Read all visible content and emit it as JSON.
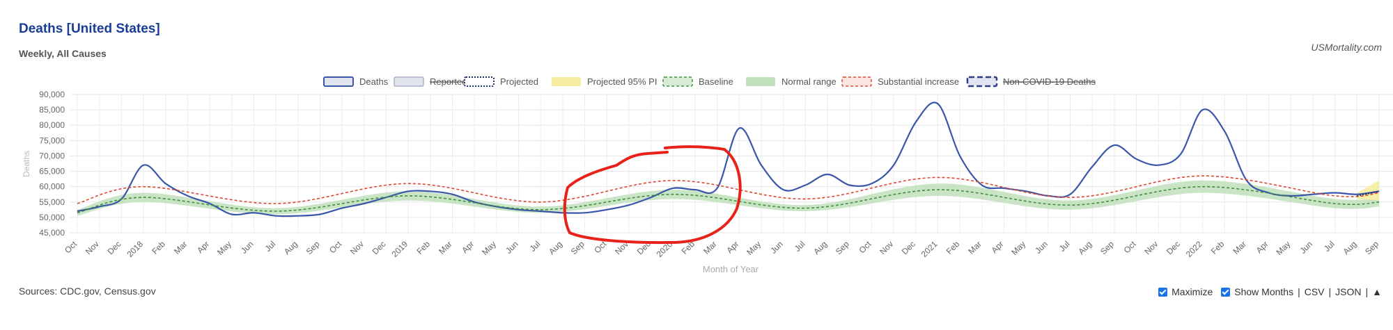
{
  "header": {
    "title": "Deaths [United States]",
    "subtitle": "Weekly, All Causes",
    "brand": "USMortality.com"
  },
  "footer": {
    "sources": "Sources: CDC.gov, Census.gov",
    "maximize_label": "Maximize",
    "show_months_label": "Show Months",
    "csv_label": "CSV",
    "json_label": "JSON",
    "separator": "|",
    "up_arrow": "▲"
  },
  "colors": {
    "deaths": "#3a56a8",
    "reported": "#c9ccd6",
    "projected_pi": "#f5eda0",
    "baseline": "#3f8f3f",
    "normal_range": "#bfe0bb",
    "substantial": "#e0452f",
    "annotation": "#e8221b"
  },
  "chart_data": {
    "type": "line",
    "title": "Deaths [United States]",
    "subtitle": "Weekly, All Causes",
    "xlabel": "Month of Year",
    "ylabel": "Deaths",
    "ylim": [
      45000,
      90000
    ],
    "yticks": [
      "45,000",
      "50,000",
      "55,000",
      "60,000",
      "65,000",
      "70,000",
      "75,000",
      "80,000",
      "85,000",
      "90,000"
    ],
    "grid": true,
    "legend_position": "top",
    "legend": [
      {
        "name": "Deaths",
        "style": "deaths",
        "struck": false
      },
      {
        "name": "Reported",
        "style": "reported",
        "struck": true
      },
      {
        "name": "Projected",
        "style": "projected",
        "struck": false
      },
      {
        "name": "Projected 95% PI",
        "style": "pi",
        "struck": false
      },
      {
        "name": "Baseline",
        "style": "baseline",
        "struck": false
      },
      {
        "name": "Normal range",
        "style": "normal",
        "struck": false
      },
      {
        "name": "Substantial increase",
        "style": "substantial",
        "struck": false
      },
      {
        "name": "Non-COVID-19 Deaths",
        "style": "noncovid",
        "struck": true
      }
    ],
    "x_start": "2017-10",
    "xticks": [
      "Oct",
      "Nov",
      "Dec",
      "2018",
      "Feb",
      "Mar",
      "Apr",
      "May",
      "Jun",
      "Jul",
      "Aug",
      "Sep",
      "Oct",
      "Nov",
      "Dec",
      "2019",
      "Feb",
      "Mar",
      "Apr",
      "May",
      "Jun",
      "Jul",
      "Aug",
      "Sep",
      "Oct",
      "Nov",
      "Dec",
      "2020",
      "Feb",
      "Mar",
      "Apr",
      "May",
      "Jun",
      "Jul",
      "Aug",
      "Sep",
      "Oct",
      "Nov",
      "Dec",
      "2021",
      "Feb",
      "Mar",
      "Apr",
      "May",
      "Jun",
      "Jul",
      "Aug",
      "Sep",
      "Oct",
      "Nov",
      "Dec",
      "2022",
      "Feb",
      "Mar",
      "Apr",
      "May",
      "Jun",
      "Jul",
      "Aug",
      "Sep"
    ],
    "series": [
      {
        "name": "Deaths",
        "x": [
          "2017-10",
          "2017-11",
          "2017-12",
          "2018-01",
          "2018-02",
          "2018-03",
          "2018-04",
          "2018-05",
          "2018-06",
          "2018-07",
          "2018-08",
          "2018-09",
          "2018-10",
          "2018-11",
          "2018-12",
          "2019-01",
          "2019-02",
          "2019-03",
          "2019-04",
          "2019-05",
          "2019-06",
          "2019-07",
          "2019-08",
          "2019-09",
          "2019-10",
          "2019-11",
          "2019-12",
          "2020-01",
          "2020-02",
          "2020-03",
          "2020-04",
          "2020-05",
          "2020-06",
          "2020-07",
          "2020-08",
          "2020-09",
          "2020-10",
          "2020-11",
          "2020-12",
          "2021-01",
          "2021-02",
          "2021-03",
          "2021-04",
          "2021-05",
          "2021-06",
          "2021-07",
          "2021-08",
          "2021-09",
          "2021-10",
          "2021-11",
          "2021-12",
          "2022-01",
          "2022-02",
          "2022-03",
          "2022-04",
          "2022-05",
          "2022-06",
          "2022-07",
          "2022-08",
          "2022-09"
        ],
        "values": [
          52000,
          53500,
          56000,
          67000,
          61000,
          57000,
          54500,
          51000,
          51500,
          50500,
          50500,
          51000,
          53000,
          54500,
          56500,
          58500,
          58500,
          57500,
          55000,
          53500,
          52500,
          52000,
          51500,
          51500,
          52500,
          54000,
          56500,
          59500,
          59000,
          59500,
          79000,
          67000,
          59000,
          60500,
          64000,
          60500,
          61000,
          67000,
          81000,
          87000,
          70000,
          60500,
          59500,
          58500,
          57000,
          57500,
          66500,
          73500,
          69000,
          67000,
          70500,
          85000,
          78000,
          62000,
          58000,
          57000,
          57500,
          58000,
          57500,
          58500
        ]
      },
      {
        "name": "Baseline",
        "x": [
          "2017-10",
          "2018-01",
          "2018-07",
          "2019-01",
          "2019-07",
          "2020-01",
          "2020-07",
          "2021-01",
          "2021-07",
          "2022-01",
          "2022-07",
          "2022-09"
        ],
        "values": [
          51500,
          56500,
          52000,
          57000,
          52500,
          57500,
          53000,
          59000,
          54000,
          60000,
          54500,
          55000
        ]
      },
      {
        "name": "Substantial increase",
        "x": [
          "2017-10",
          "2018-01",
          "2018-07",
          "2019-01",
          "2019-07",
          "2020-01",
          "2020-07",
          "2021-01",
          "2021-07",
          "2022-01",
          "2022-07",
          "2022-09"
        ],
        "values": [
          54500,
          60000,
          54500,
          61000,
          55000,
          62000,
          56000,
          63000,
          56500,
          63500,
          57000,
          58000
        ]
      }
    ],
    "normal_range": {
      "x": [
        "2017-10",
        "2018-01",
        "2018-07",
        "2019-01",
        "2019-07",
        "2020-01",
        "2020-07",
        "2021-01",
        "2021-07",
        "2022-01",
        "2022-07",
        "2022-09"
      ],
      "low": [
        50500,
        55000,
        51000,
        55500,
        51500,
        56000,
        52000,
        57000,
        52500,
        58000,
        53000,
        53500
      ],
      "high": [
        52500,
        58000,
        53000,
        58500,
        53500,
        59000,
        54000,
        61000,
        55500,
        62000,
        56000,
        56500
      ]
    },
    "projected": {
      "x": [
        "2022-08",
        "2022-09"
      ],
      "values": [
        57000,
        58500
      ],
      "pi_low": [
        56000,
        55500
      ],
      "pi_high": [
        58000,
        62000
      ]
    }
  }
}
